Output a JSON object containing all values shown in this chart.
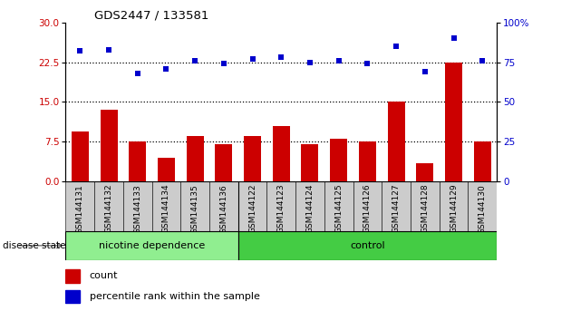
{
  "title": "GDS2447 / 133581",
  "samples": [
    "GSM144131",
    "GSM144132",
    "GSM144133",
    "GSM144134",
    "GSM144135",
    "GSM144136",
    "GSM144122",
    "GSM144123",
    "GSM144124",
    "GSM144125",
    "GSM144126",
    "GSM144127",
    "GSM144128",
    "GSM144129",
    "GSM144130"
  ],
  "counts": [
    9.5,
    13.5,
    7.5,
    4.5,
    8.5,
    7.0,
    8.5,
    10.5,
    7.0,
    8.0,
    7.5,
    15.0,
    3.5,
    22.5,
    7.5
  ],
  "percentiles": [
    82,
    83,
    68,
    71,
    76,
    74,
    77,
    78,
    75,
    76,
    74,
    85,
    69,
    90,
    76
  ],
  "group1_label": "nicotine dependence",
  "group1_count": 6,
  "group2_label": "control",
  "group2_count": 9,
  "group_label": "disease state",
  "bar_color": "#cc0000",
  "dot_color": "#0000cc",
  "left_yticks": [
    0,
    7.5,
    15,
    22.5,
    30
  ],
  "right_yticks": [
    0,
    25,
    50,
    75,
    100
  ],
  "left_ylim": [
    0,
    30
  ],
  "right_ylim": [
    0,
    100
  ],
  "hlines": [
    7.5,
    15.0,
    22.5
  ],
  "bg_color_plot": "#ffffff",
  "bg_color_xtick": "#cccccc",
  "bg_color_group1": "#90ee90",
  "bg_color_group2": "#44cc44",
  "legend_count_label": "count",
  "legend_pct_label": "percentile rank within the sample"
}
